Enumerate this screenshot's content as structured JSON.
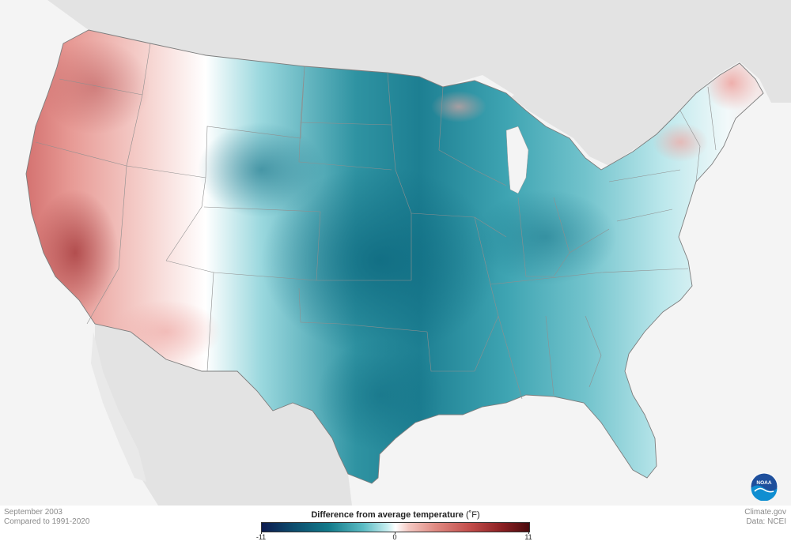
{
  "footer": {
    "date": "September 2003",
    "baseline": "Compared to 1991-2020",
    "credit": "Climate.gov",
    "data_source": "Data: NCEI"
  },
  "legend": {
    "title": "Difference from average temperature",
    "unit": "(˚F)",
    "min_label": "-11",
    "mid_label": "0",
    "max_label": "11"
  },
  "logo": {
    "text": "NOAA",
    "icon": "noaa-logo-icon"
  },
  "colors": {
    "cold_dark": "#0d1b4f",
    "cold_mid": "#127a8a",
    "neutral": "#ffffff",
    "warm_mid": "#e08a82",
    "warm_dark": "#4a0b0e",
    "land_outside": "#e2e2e2",
    "water": "#f4f4f4"
  }
}
